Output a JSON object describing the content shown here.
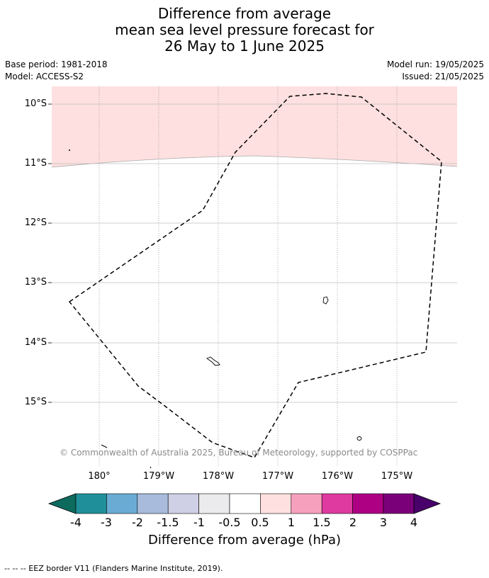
{
  "title": {
    "line1": "Difference from average",
    "line2": "mean sea level pressure forecast for",
    "line3": "26 May to 1 June 2025"
  },
  "meta": {
    "base_period": "Base period: 1981-2018",
    "model": "Model: ACCESS-S2",
    "model_run": "Model run: 19/05/2025",
    "issued": "Issued: 21/05/2025"
  },
  "map": {
    "lat_labels": [
      "10°S",
      "11°S",
      "12°S",
      "13°S",
      "14°S",
      "15°S"
    ],
    "lon_labels": [
      "180°",
      "179°W",
      "178°W",
      "177°W",
      "176°W",
      "175°W"
    ],
    "anomaly_fill_color": "#fde0df",
    "copyright": "© Commonwealth of Australia 2025, Bureau of Meteorology, supported by COSPPac"
  },
  "colorbar": {
    "title": "Difference from average (hPa)",
    "tick_labels": [
      "-4",
      "-3",
      "-2",
      "-1.5",
      "-1",
      "-0.5",
      "0.5",
      "1",
      "1.5",
      "2",
      "3",
      "4"
    ],
    "colors": [
      "#0d6b5e",
      "#1f9099",
      "#6aabd4",
      "#a8bbdc",
      "#cfd0e6",
      "#ebebed",
      "#ffffff",
      "#fde0df",
      "#f7a0bd",
      "#de3aa0",
      "#ad0083",
      "#7a007a",
      "#49006a"
    ]
  },
  "footer": "--  --  -- EEZ border V11 (Flanders Marine Institute, 2019)."
}
